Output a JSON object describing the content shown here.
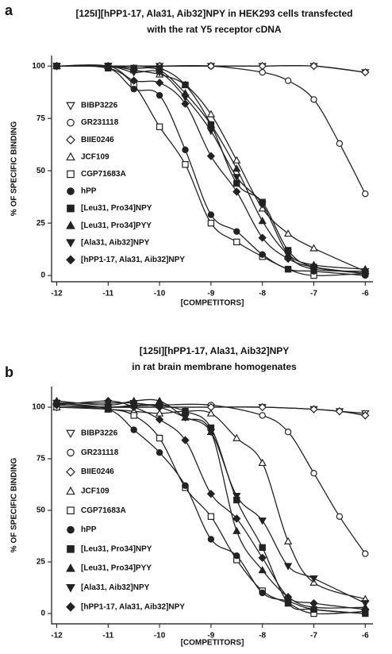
{
  "chart_data": [
    {
      "type": "scatter",
      "panel": "a",
      "title": [
        "[125I][hPP1-17, Ala31, Aib32]NPY in HEK293 cells transfected",
        "with the rat Y5 receptor cDNA"
      ],
      "x_label": "[COMPETITORS]",
      "y_label": "% OF SPECIFIC BINDING",
      "xlim": [
        -12.1,
        -5.85
      ],
      "ylim": [
        -3,
        105
      ],
      "xticks": [
        -12,
        -11,
        -10,
        -9,
        -8,
        -7,
        -6
      ],
      "yticks": [
        0,
        25,
        50,
        75,
        100
      ],
      "x": [
        -12,
        -11,
        -10.5,
        -10,
        -9.5,
        -9,
        -8.5,
        -8,
        -7.5,
        -7,
        -6.5,
        -6
      ],
      "series": [
        {
          "name": "BIBP3226",
          "marker": "triangle-down",
          "filled": false,
          "color": "#222",
          "values": [
            100,
            100,
            null,
            100,
            null,
            100,
            null,
            100,
            null,
            100,
            null,
            97
          ]
        },
        {
          "name": "GR231118",
          "marker": "circle",
          "filled": false,
          "color": "#222",
          "values": [
            100,
            100,
            null,
            100,
            null,
            100,
            null,
            97,
            93,
            84,
            63,
            39
          ]
        },
        {
          "name": "BIIE0246",
          "marker": "diamond",
          "filled": false,
          "color": "#222",
          "values": [
            100,
            100,
            null,
            100,
            null,
            100,
            null,
            100,
            null,
            100,
            null,
            97
          ]
        },
        {
          "name": "JCF109",
          "marker": "triangle-up",
          "filled": false,
          "color": "#222",
          "values": [
            100,
            100,
            98,
            96,
            91,
            77,
            55,
            32,
            20,
            13,
            null,
            2
          ]
        },
        {
          "name": "CGP71683A",
          "marker": "square",
          "filled": false,
          "color": "#222",
          "values": [
            100,
            99,
            91,
            71,
            53,
            25,
            16,
            9,
            3,
            0,
            null,
            1
          ]
        },
        {
          "name": "hPP",
          "marker": "circle",
          "filled": true,
          "color": "#222",
          "values": [
            100,
            99,
            89,
            86,
            60,
            29,
            21,
            10,
            3,
            2,
            null,
            0
          ]
        },
        {
          "name": "[Leu31, Pro34]NPY",
          "marker": "square",
          "filled": true,
          "color": "#222",
          "values": [
            100,
            100,
            99,
            99,
            91,
            72,
            44,
            35,
            12,
            4,
            null,
            1
          ]
        },
        {
          "name": "[Leu31, Pro34]PYY",
          "marker": "triangle-up",
          "filled": true,
          "color": "#222",
          "values": [
            100,
            100,
            99,
            98,
            87,
            72,
            51,
            26,
            10,
            5,
            null,
            3
          ]
        },
        {
          "name": "[Ala31, Aib32]NPY",
          "marker": "triangle-down",
          "filled": true,
          "color": "#222",
          "values": [
            100,
            100,
            97,
            97,
            85,
            69,
            47,
            34,
            10,
            3,
            null,
            2
          ]
        },
        {
          "name": "[hPP1-17, Ala31, Aib32]NPY",
          "marker": "diamond",
          "filled": true,
          "color": "#222",
          "values": [
            100,
            100,
            93,
            92,
            82,
            57,
            40,
            18,
            8,
            4,
            null,
            1
          ]
        }
      ]
    },
    {
      "type": "scatter",
      "panel": "b",
      "title": [
        "[125I][hPP1-17, Ala31, Aib32]NPY",
        "in rat brain membrane homogenates"
      ],
      "x_label": "[COMPETITORS]",
      "y_label": "% OF SPECIFIC BINDING",
      "xlim": [
        -12.1,
        -5.85
      ],
      "ylim": [
        -5,
        110
      ],
      "xticks": [
        -12,
        -11,
        -10,
        -9,
        -8,
        -7,
        -6
      ],
      "yticks": [
        0,
        25,
        50,
        75,
        100
      ],
      "x": [
        -12,
        -11,
        -10.5,
        -10,
        -9.5,
        -9,
        -8.5,
        -8,
        -7.5,
        -7,
        -6.5,
        -6
      ],
      "series": [
        {
          "name": "BIBP3226",
          "marker": "triangle-down",
          "filled": false,
          "color": "#222",
          "values": [
            100,
            100,
            null,
            100,
            null,
            100,
            null,
            100,
            null,
            99,
            98,
            97
          ]
        },
        {
          "name": "GR231118",
          "marker": "circle",
          "filled": false,
          "color": "#222",
          "values": [
            100,
            100,
            null,
            101,
            null,
            101,
            null,
            96,
            88,
            68,
            47,
            29
          ]
        },
        {
          "name": "BIIE0246",
          "marker": "diamond",
          "filled": false,
          "color": "#222",
          "values": [
            101,
            100,
            null,
            100,
            null,
            100,
            null,
            100,
            null,
            99,
            98,
            96
          ]
        },
        {
          "name": "JCF109",
          "marker": "triangle-up",
          "filled": false,
          "color": "#222",
          "values": [
            100,
            99,
            98,
            97,
            98,
            97,
            85,
            73,
            35,
            15,
            null,
            7
          ]
        },
        {
          "name": "CGP71683A",
          "marker": "square",
          "filled": false,
          "color": "#222",
          "values": [
            100,
            99,
            96,
            85,
            61,
            47,
            26,
            11,
            5,
            0,
            null,
            1
          ]
        },
        {
          "name": "hPP",
          "marker": "circle",
          "filled": true,
          "color": "#222",
          "values": [
            102,
            99,
            89,
            78,
            62,
            36,
            28,
            10,
            6,
            2,
            null,
            0
          ]
        },
        {
          "name": "[Leu31, Pro34]NPY",
          "marker": "square",
          "filled": true,
          "color": "#222",
          "values": [
            102,
            100,
            101,
            101,
            98,
            90,
            55,
            32,
            5,
            2,
            null,
            0
          ]
        },
        {
          "name": "[Leu31, Pro34]PYY",
          "marker": "triangle-up",
          "filled": true,
          "color": "#222",
          "values": [
            103,
            101,
            103,
            103,
            95,
            88,
            40,
            21,
            8,
            3,
            null,
            3
          ]
        },
        {
          "name": "[Ala31, Aib32]NPY",
          "marker": "triangle-down",
          "filled": true,
          "color": "#222",
          "values": [
            102,
            102,
            102,
            100,
            95,
            88,
            57,
            45,
            23,
            17,
            null,
            5
          ]
        },
        {
          "name": "[hPP1-17, Ala31, Aib32]NPY",
          "marker": "diamond",
          "filled": true,
          "color": "#222",
          "values": [
            101,
            103,
            100,
            94,
            84,
            58,
            46,
            27,
            8,
            5,
            null,
            2
          ]
        }
      ]
    }
  ]
}
